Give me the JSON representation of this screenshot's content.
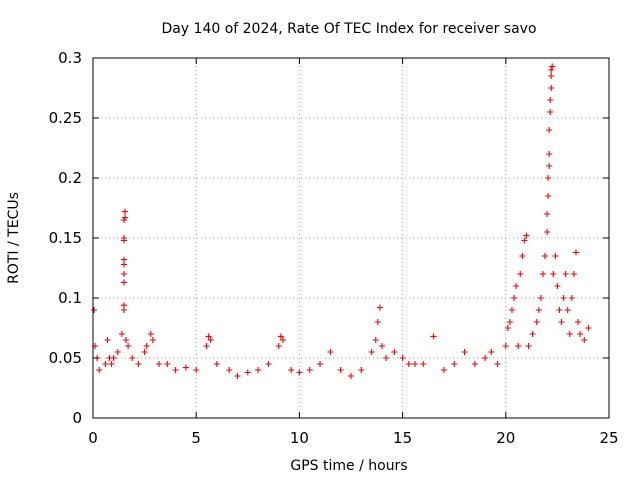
{
  "chart_data": {
    "type": "scatter",
    "title": "Day 140 of 2024, Rate Of TEC Index for receiver savo",
    "xlabel": "GPS time / hours",
    "ylabel": "ROTI / TECUs",
    "xlim": [
      0,
      25
    ],
    "ylim": [
      0,
      0.3
    ],
    "xticks": [
      0,
      5,
      10,
      15,
      20,
      25
    ],
    "yticks": [
      0,
      0.05,
      0.1,
      0.15,
      0.2,
      0.25,
      0.3
    ],
    "xtick_labels": [
      "0",
      "5",
      "10",
      "15",
      "20",
      "25"
    ],
    "ytick_labels": [
      "0",
      "0.05",
      "0.1",
      "0.15",
      "0.2",
      "0.25",
      "0.3"
    ],
    "grid": true,
    "marker": "+",
    "series": [
      {
        "name": "ROTI",
        "color": "#ff0000",
        "points": [
          [
            0.05,
            0.09
          ],
          [
            0.1,
            0.06
          ],
          [
            0.2,
            0.05
          ],
          [
            0.3,
            0.04
          ],
          [
            0.6,
            0.045
          ],
          [
            0.7,
            0.065
          ],
          [
            0.8,
            0.05
          ],
          [
            0.9,
            0.045
          ],
          [
            1.0,
            0.05
          ],
          [
            1.2,
            0.055
          ],
          [
            1.4,
            0.07
          ],
          [
            1.5,
            0.09
          ],
          [
            1.5,
            0.094
          ],
          [
            1.5,
            0.113
          ],
          [
            1.5,
            0.12
          ],
          [
            1.5,
            0.128
          ],
          [
            1.5,
            0.132
          ],
          [
            1.5,
            0.148
          ],
          [
            1.5,
            0.15
          ],
          [
            1.5,
            0.165
          ],
          [
            1.55,
            0.167
          ],
          [
            1.55,
            0.172
          ],
          [
            1.6,
            0.065
          ],
          [
            1.7,
            0.06
          ],
          [
            1.9,
            0.05
          ],
          [
            2.2,
            0.045
          ],
          [
            2.5,
            0.055
          ],
          [
            2.6,
            0.06
          ],
          [
            2.8,
            0.07
          ],
          [
            2.9,
            0.065
          ],
          [
            3.2,
            0.045
          ],
          [
            3.6,
            0.045
          ],
          [
            4.0,
            0.04
          ],
          [
            4.5,
            0.042
          ],
          [
            5.0,
            0.04
          ],
          [
            5.5,
            0.06
          ],
          [
            5.6,
            0.068
          ],
          [
            5.7,
            0.065
          ],
          [
            6.0,
            0.045
          ],
          [
            6.6,
            0.04
          ],
          [
            7.0,
            0.035
          ],
          [
            7.5,
            0.038
          ],
          [
            8.0,
            0.04
          ],
          [
            8.5,
            0.045
          ],
          [
            9.0,
            0.06
          ],
          [
            9.1,
            0.068
          ],
          [
            9.2,
            0.065
          ],
          [
            9.6,
            0.04
          ],
          [
            10.0,
            0.038
          ],
          [
            10.5,
            0.04
          ],
          [
            11.0,
            0.045
          ],
          [
            11.5,
            0.055
          ],
          [
            12.0,
            0.04
          ],
          [
            12.5,
            0.035
          ],
          [
            13.0,
            0.04
          ],
          [
            13.5,
            0.055
          ],
          [
            13.7,
            0.065
          ],
          [
            13.8,
            0.08
          ],
          [
            13.9,
            0.092
          ],
          [
            14.0,
            0.06
          ],
          [
            14.2,
            0.05
          ],
          [
            14.6,
            0.055
          ],
          [
            15.0,
            0.05
          ],
          [
            15.3,
            0.045
          ],
          [
            15.6,
            0.045
          ],
          [
            16.0,
            0.045
          ],
          [
            16.5,
            0.068
          ],
          [
            17.0,
            0.04
          ],
          [
            17.5,
            0.045
          ],
          [
            18.0,
            0.055
          ],
          [
            18.5,
            0.045
          ],
          [
            19.0,
            0.05
          ],
          [
            19.3,
            0.055
          ],
          [
            19.6,
            0.045
          ],
          [
            20.0,
            0.06
          ],
          [
            20.1,
            0.075
          ],
          [
            20.2,
            0.08
          ],
          [
            20.3,
            0.09
          ],
          [
            20.4,
            0.1
          ],
          [
            20.5,
            0.11
          ],
          [
            20.6,
            0.06
          ],
          [
            20.7,
            0.12
          ],
          [
            20.8,
            0.135
          ],
          [
            20.9,
            0.148
          ],
          [
            21.0,
            0.152
          ],
          [
            21.1,
            0.06
          ],
          [
            21.3,
            0.07
          ],
          [
            21.5,
            0.08
          ],
          [
            21.6,
            0.09
          ],
          [
            21.7,
            0.1
          ],
          [
            21.8,
            0.12
          ],
          [
            21.9,
            0.135
          ],
          [
            22.0,
            0.155
          ],
          [
            22.0,
            0.17
          ],
          [
            22.05,
            0.185
          ],
          [
            22.05,
            0.2
          ],
          [
            22.1,
            0.21
          ],
          [
            22.1,
            0.22
          ],
          [
            22.1,
            0.24
          ],
          [
            22.15,
            0.255
          ],
          [
            22.15,
            0.265
          ],
          [
            22.2,
            0.275
          ],
          [
            22.2,
            0.285
          ],
          [
            22.2,
            0.29
          ],
          [
            22.25,
            0.293
          ],
          [
            22.3,
            0.12
          ],
          [
            22.4,
            0.135
          ],
          [
            22.5,
            0.11
          ],
          [
            22.6,
            0.09
          ],
          [
            22.7,
            0.08
          ],
          [
            22.8,
            0.1
          ],
          [
            22.9,
            0.12
          ],
          [
            23.0,
            0.09
          ],
          [
            23.1,
            0.07
          ],
          [
            23.2,
            0.1
          ],
          [
            23.3,
            0.12
          ],
          [
            23.4,
            0.138
          ],
          [
            23.5,
            0.08
          ],
          [
            23.6,
            0.07
          ],
          [
            23.8,
            0.065
          ],
          [
            24.0,
            0.075
          ]
        ]
      }
    ]
  }
}
